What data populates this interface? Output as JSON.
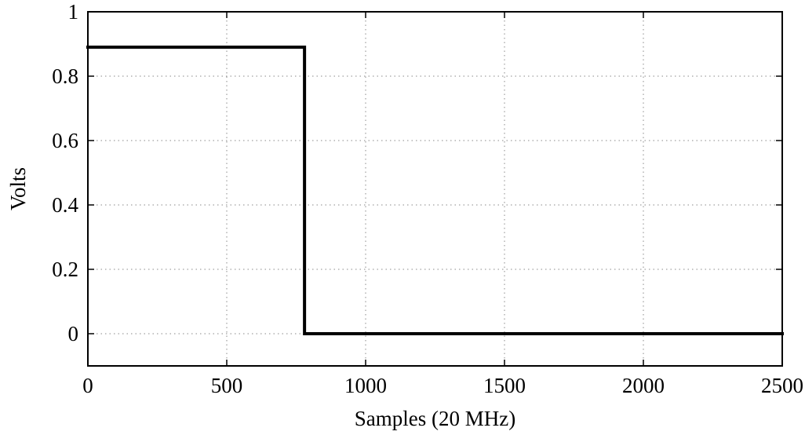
{
  "chart_data": {
    "type": "line",
    "title": "",
    "xlabel": "Samples (20 MHz)",
    "ylabel": "Volts",
    "xlim": [
      0,
      2500
    ],
    "ylim": [
      -0.1,
      1
    ],
    "xticks": [
      0,
      500,
      1000,
      1500,
      2000,
      2500
    ],
    "xtick_labels": [
      "0",
      "500",
      "1000",
      "1500",
      "2000",
      "2500"
    ],
    "yticks": [
      0,
      0.2,
      0.4,
      0.6,
      0.8,
      1
    ],
    "ytick_labels": [
      "0",
      "0.2",
      "0.4",
      "0.6",
      "0.8",
      "1"
    ],
    "grid": true,
    "series": [
      {
        "x": [
          0,
          780,
          780,
          790,
          2500
        ],
        "y": [
          0.89,
          0.89,
          0.0,
          0.0,
          0.0
        ]
      }
    ]
  }
}
